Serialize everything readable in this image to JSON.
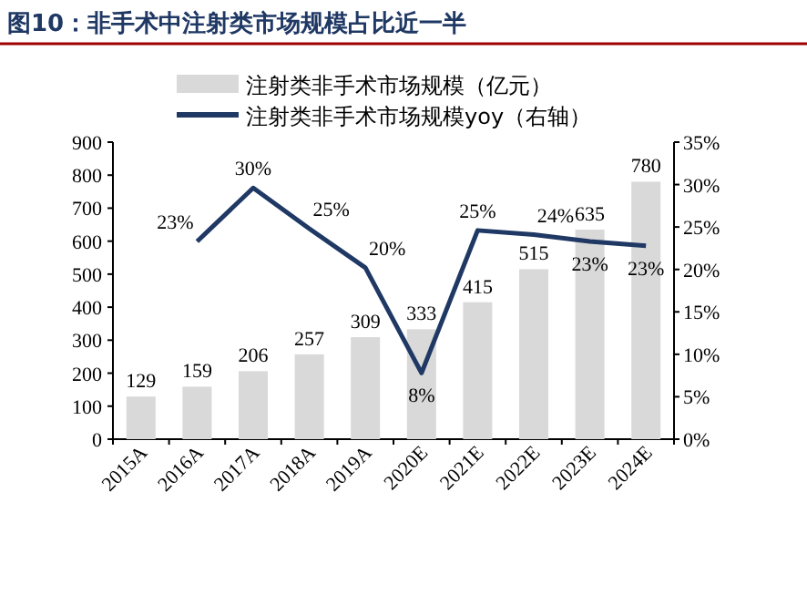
{
  "chart_data": {
    "type": "bar",
    "title": "图10：非手术中注射类市场规模占比近一半",
    "categories": [
      "2015A",
      "2016A",
      "2017A",
      "2018A",
      "2019A",
      "2020E",
      "2021E",
      "2022E",
      "2023E",
      "2024E"
    ],
    "series": [
      {
        "name": "注射类非手术市场规模（亿元）",
        "color": "#d9d9d9",
        "values": [
          129,
          159,
          206,
          257,
          309,
          333,
          415,
          515,
          635,
          780
        ],
        "value_labels": [
          "129",
          "159",
          "206",
          "257",
          "309",
          "333",
          "415",
          "515",
          "635",
          "780"
        ]
      },
      {
        "name": "注射类非手术市场规模yoy（右轴）",
        "type": "line",
        "axis": "y2",
        "color": "#1f3864",
        "values": [
          null,
          23.3,
          29.6,
          24.8,
          20.2,
          7.8,
          24.6,
          24.1,
          23.3,
          22.8
        ],
        "value_labels": [
          null,
          "23%",
          "30%",
          "25%",
          "20%",
          "8%",
          "25%",
          "24%",
          "23%",
          "23%"
        ]
      }
    ],
    "ylim": [
      0,
      900
    ],
    "yticks": [
      0,
      100,
      200,
      300,
      400,
      500,
      600,
      700,
      800,
      900
    ],
    "y2lim": [
      0,
      35
    ],
    "y2ticks": [
      {
        "value": 0,
        "label": "0%"
      },
      {
        "value": 5,
        "label": "5%"
      },
      {
        "value": 10,
        "label": "10%"
      },
      {
        "value": 15,
        "label": "15%"
      },
      {
        "value": 20,
        "label": "20%"
      },
      {
        "value": 25,
        "label": "25%"
      },
      {
        "value": 30,
        "label": "30%"
      },
      {
        "value": 35,
        "label": "35%"
      }
    ],
    "legend": "top",
    "grid": false,
    "marker": "none"
  }
}
